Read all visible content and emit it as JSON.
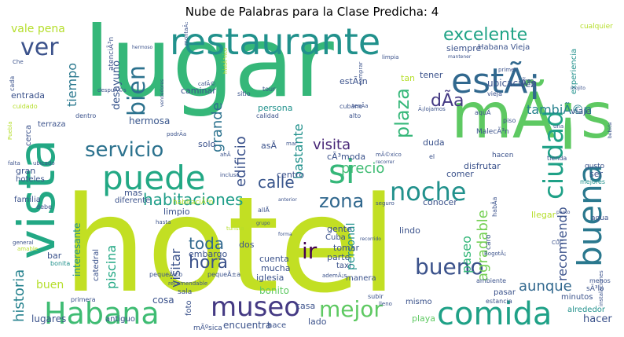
{
  "chart_data": {
    "type": "wordcloud",
    "title": "Nube de Palabras para la Clase Predicha: 4",
    "colormap": "viridis",
    "background": "#ffffff",
    "words": [
      {
        "text": "hotel",
        "weight": 100,
        "color": "#c2df23"
      },
      {
        "text": "lugar",
        "weight": 88,
        "color": "#35b779"
      },
      {
        "text": "mÃ¡s",
        "weight": 56,
        "color": "#5ec962"
      },
      {
        "text": "vista",
        "weight": 50,
        "color": "#22a884"
      },
      {
        "text": "buena",
        "weight": 30,
        "color": "#2a788e"
      },
      {
        "text": "restaurante",
        "weight": 36,
        "color": "#21918c"
      },
      {
        "text": "estÃ¡",
        "weight": 34,
        "color": "#31688e"
      },
      {
        "text": "puede",
        "weight": 33,
        "color": "#22a884"
      },
      {
        "text": "si",
        "weight": 32,
        "color": "#35b779"
      },
      {
        "text": "comida",
        "weight": 31,
        "color": "#1fa187"
      },
      {
        "text": "Habana",
        "weight": 29,
        "color": "#3fbc73"
      },
      {
        "text": "museo",
        "weight": 27,
        "color": "#443983"
      },
      {
        "text": "ciudad",
        "weight": 26,
        "color": "#1fa187"
      },
      {
        "text": "noche",
        "weight": 26,
        "color": "#21918c"
      },
      {
        "text": "bien",
        "weight": 25,
        "color": "#2c728e"
      },
      {
        "text": "ver",
        "weight": 24,
        "color": "#3b528b"
      },
      {
        "text": "bueno",
        "weight": 22,
        "color": "#3b528b"
      },
      {
        "text": "mejor",
        "weight": 22,
        "color": "#5ec962"
      },
      {
        "text": "servicio",
        "weight": 21,
        "color": "#2c728e"
      },
      {
        "text": "zona",
        "weight": 20,
        "color": "#31688e"
      },
      {
        "text": "ir",
        "weight": 20,
        "color": "#440154"
      },
      {
        "text": "plaza",
        "weight": 20,
        "color": "#35b779"
      },
      {
        "text": "excelente",
        "weight": 18,
        "color": "#20a386"
      },
      {
        "text": "dÃ­a",
        "weight": 17,
        "color": "#443983"
      },
      {
        "text": "hora",
        "weight": 17,
        "color": "#3b528b"
      },
      {
        "text": "habitaciones",
        "weight": 16,
        "color": "#1f9e89"
      },
      {
        "text": "calle",
        "weight": 16,
        "color": "#39568c"
      },
      {
        "text": "precio",
        "weight": 15,
        "color": "#3fbc73"
      },
      {
        "text": "historia",
        "weight": 15,
        "color": "#26828e"
      },
      {
        "text": "toda",
        "weight": 15,
        "color": "#31688e"
      },
      {
        "text": "aunque",
        "weight": 14,
        "color": "#31688e"
      },
      {
        "text": "visita",
        "weight": 14,
        "color": "#482677"
      },
      {
        "text": "edificio",
        "weight": 14,
        "color": "#3b528b"
      },
      {
        "text": "grande",
        "weight": 13,
        "color": "#2c728e"
      },
      {
        "text": "agradable",
        "weight": 13,
        "color": "#75d054"
      },
      {
        "text": "tambiÃ©n",
        "weight": 13,
        "color": "#26828e"
      },
      {
        "text": "recomiendo",
        "weight": 12,
        "color": "#3b528b"
      },
      {
        "text": "bastante",
        "weight": 12,
        "color": "#21918c"
      },
      {
        "text": "tiempo",
        "weight": 12,
        "color": "#2a788e"
      },
      {
        "text": "piscina",
        "weight": 12,
        "color": "#22a884"
      },
      {
        "text": "visitar",
        "weight": 12,
        "color": "#3b528b"
      },
      {
        "text": "paseo",
        "weight": 12,
        "color": "#35b779"
      },
      {
        "text": "buen",
        "weight": 12,
        "color": "#b5de2b"
      },
      {
        "text": "vale pena",
        "weight": 10,
        "color": "#b5de2b"
      },
      {
        "text": "personal",
        "weight": 10,
        "color": "#21918c"
      },
      {
        "text": "desayuno",
        "weight": 10,
        "color": "#39568c"
      },
      {
        "text": "hermosa",
        "weight": 9,
        "color": "#39568c"
      },
      {
        "text": "hacer",
        "weight": 9,
        "color": "#3b528b"
      },
      {
        "text": "lugares",
        "weight": 9,
        "color": "#3b528b"
      },
      {
        "text": "encuentra",
        "weight": 9,
        "color": "#3b528b"
      },
      {
        "text": "bonito",
        "weight": 9,
        "color": "#5ec962"
      },
      {
        "text": "cosa",
        "weight": 9,
        "color": "#3b528b"
      },
      {
        "text": "interesante",
        "weight": 9,
        "color": "#21918c"
      },
      {
        "text": "ubicaciÃ³n",
        "weight": 8,
        "color": "#3b528b"
      },
      {
        "text": "limpio",
        "weight": 8,
        "color": "#3b528b"
      },
      {
        "text": "mas",
        "weight": 8,
        "color": "#3b528b"
      },
      {
        "text": "duda",
        "weight": 8,
        "color": "#3b528b"
      },
      {
        "text": "lindo",
        "weight": 8,
        "color": "#3b528b"
      },
      {
        "text": "gente",
        "weight": 8,
        "color": "#3b528b"
      },
      {
        "text": "parte",
        "weight": 8,
        "color": "#3b528b"
      },
      {
        "text": "embargo",
        "weight": 8,
        "color": "#3b528b"
      },
      {
        "text": "iglesia",
        "weight": 8,
        "color": "#3b528b"
      },
      {
        "text": "conocer",
        "weight": 8,
        "color": "#3b528b"
      },
      {
        "text": "comer",
        "weight": 8,
        "color": "#3b528b"
      },
      {
        "text": "disfrutar",
        "weight": 8,
        "color": "#3b528b"
      },
      {
        "text": "solo",
        "weight": 8,
        "color": "#3b528b"
      },
      {
        "text": "asÃ­",
        "weight": 8,
        "color": "#3b528b"
      },
      {
        "text": "cÃ³moda",
        "weight": 8,
        "color": "#3b528b"
      },
      {
        "text": "entrada",
        "weight": 8,
        "color": "#3b528b"
      },
      {
        "text": "caminar",
        "weight": 8,
        "color": "#3b528b"
      },
      {
        "text": "siempre",
        "weight": 8,
        "color": "#3b528b"
      },
      {
        "text": "tener",
        "weight": 8,
        "color": "#3b528b"
      },
      {
        "text": "vez",
        "weight": 8,
        "color": "#3b528b"
      },
      {
        "text": "viaje",
        "weight": 8,
        "color": "#3b528b"
      },
      {
        "text": "centro",
        "weight": 8,
        "color": "#3b528b"
      },
      {
        "text": "tomar",
        "weight": 8,
        "color": "#3b528b"
      },
      {
        "text": "cuenta",
        "weight": 8,
        "color": "#3b528b"
      },
      {
        "text": "mucha",
        "weight": 8,
        "color": "#3b528b"
      },
      {
        "text": "casa",
        "weight": 8,
        "color": "#3b528b"
      },
      {
        "text": "lado",
        "weight": 8,
        "color": "#3b528b"
      },
      {
        "text": "playa",
        "weight": 8,
        "color": "#5ec962"
      },
      {
        "text": "llegar",
        "weight": 8,
        "color": "#b5de2b"
      },
      {
        "text": "bar",
        "weight": 8,
        "color": "#3b528b"
      },
      {
        "text": "gran",
        "weight": 8,
        "color": "#3b528b"
      },
      {
        "text": "dos",
        "weight": 8,
        "color": "#3b528b"
      },
      {
        "text": "ser",
        "weight": 8,
        "color": "#3b528b"
      },
      {
        "text": "estÃ¡n",
        "weight": 7,
        "color": "#3b528b"
      },
      {
        "text": "tan",
        "weight": 7,
        "color": "#b5de2b"
      },
      {
        "text": "persona",
        "weight": 7,
        "color": "#21918c"
      },
      {
        "text": "Cuba",
        "weight": 7,
        "color": "#3b528b"
      },
      {
        "text": "taxi",
        "weight": 7,
        "color": "#3b528b"
      },
      {
        "text": "hoteles",
        "weight": 7,
        "color": "#3b528b"
      },
      {
        "text": "familia",
        "weight": 7,
        "color": "#3b528b"
      },
      {
        "text": "diferente",
        "weight": 7,
        "color": "#3b528b"
      },
      {
        "text": "Habana Vieja",
        "weight": 7,
        "color": "#3b528b"
      },
      {
        "text": "experiencia",
        "weight": 7,
        "color": "#21918c"
      },
      {
        "text": "terraza",
        "weight": 7,
        "color": "#3b528b"
      },
      {
        "text": "cerca",
        "weight": 7,
        "color": "#3b528b"
      },
      {
        "text": "pasar",
        "weight": 7,
        "color": "#3b528b"
      },
      {
        "text": "manera",
        "weight": 7,
        "color": "#3b528b"
      },
      {
        "text": "mismo",
        "weight": 7,
        "color": "#3b528b"
      },
      {
        "text": "minutos",
        "weight": 7,
        "color": "#3b528b"
      },
      {
        "text": "alrededor",
        "weight": 7,
        "color": "#21918c"
      },
      {
        "text": "antiguo",
        "weight": 7,
        "color": "#3b528b"
      },
      {
        "text": "catedral",
        "weight": 7,
        "color": "#3b528b"
      },
      {
        "text": "foto",
        "weight": 7,
        "color": "#3b528b"
      },
      {
        "text": "hace",
        "weight": 7,
        "color": "#3b528b"
      },
      {
        "text": "atenciÃ³n",
        "weight": 7,
        "color": "#3b528b"
      },
      {
        "text": "hacen",
        "weight": 7,
        "color": "#3b528b"
      },
      {
        "text": "agua",
        "weight": 7,
        "color": "#3b528b"
      },
      {
        "text": "gusto",
        "weight": 7,
        "color": "#3b528b"
      },
      {
        "text": "cualquier",
        "weight": 6,
        "color": "#b5de2b"
      },
      {
        "text": "mÃºsica",
        "weight": 6,
        "color": "#3b528b"
      },
      {
        "text": "sala",
        "weight": 6,
        "color": "#3b528b"
      },
      {
        "text": "primera",
        "weight": 6,
        "color": "#3b528b"
      },
      {
        "text": "subir",
        "weight": 6,
        "color": "#3b528b"
      },
      {
        "text": "sÃ³lo",
        "weight": 6,
        "color": "#3b528b"
      },
      {
        "text": "caro",
        "weight": 6,
        "color": "#3b528b"
      },
      {
        "text": "cuidado",
        "weight": 6,
        "color": "#b5de2b"
      },
      {
        "text": "menos",
        "weight": 6,
        "color": "#3b528b"
      },
      {
        "text": "ambiente",
        "weight": 6,
        "color": "#3b528b"
      },
      {
        "text": "estancia",
        "weight": 6,
        "color": "#3b528b"
      },
      {
        "text": "debe",
        "weight": 6,
        "color": "#3b528b"
      },
      {
        "text": "mejores",
        "weight": 6,
        "color": "#21918c"
      },
      {
        "text": "tienda",
        "weight": 6,
        "color": "#3b528b"
      },
      {
        "text": "piso",
        "weight": 6,
        "color": "#3b528b"
      },
      {
        "text": "dentro",
        "weight": 6,
        "color": "#3b528b"
      },
      {
        "text": "tour",
        "weight": 6,
        "color": "#3b528b"
      },
      {
        "text": "sitio",
        "weight": 6,
        "color": "#3b528b"
      },
      {
        "text": "calidad",
        "weight": 6,
        "color": "#3b528b"
      },
      {
        "text": "cubano",
        "weight": 6,
        "color": "#3b528b"
      },
      {
        "text": "alto",
        "weight": 6,
        "color": "#3b528b"
      },
      {
        "text": "vieja",
        "weight": 6,
        "color": "#3b528b"
      },
      {
        "text": "comprar",
        "weight": 6,
        "color": "#3b528b"
      },
      {
        "text": "limpia",
        "weight": 6,
        "color": "#3b528b"
      },
      {
        "text": "general",
        "weight": 6,
        "color": "#3b528b"
      },
      {
        "text": "amable",
        "weight": 6,
        "color": "#b5de2b"
      },
      {
        "text": "bonita",
        "weight": 6,
        "color": "#21918c"
      },
      {
        "text": "Puebla",
        "weight": 6,
        "color": "#b5de2b"
      },
      {
        "text": "ubicado",
        "weight": 6,
        "color": "#3b528b"
      },
      {
        "text": "falta",
        "weight": 6,
        "color": "#3b528b"
      },
      {
        "text": "incluso",
        "weight": 5,
        "color": "#3b528b"
      },
      {
        "text": "turista",
        "weight": 5,
        "color": "#b5de2b"
      },
      {
        "text": "seguro",
        "weight": 5,
        "color": "#3b528b"
      },
      {
        "text": "instalaciones",
        "weight": 5,
        "color": "#3b528b"
      },
      {
        "text": "creo",
        "weight": 5,
        "color": "#3b528b"
      },
      {
        "text": "primer",
        "weight": 5,
        "color": "#3b528b"
      },
      {
        "text": "vendedores",
        "weight": 5,
        "color": "#3b528b"
      },
      {
        "text": "bebida",
        "weight": 5,
        "color": "#3b528b"
      },
      {
        "text": "mÃ©xico",
        "weight": 5,
        "color": "#3b528b"
      },
      {
        "text": "recorrer",
        "weight": 5,
        "color": "#3b528b"
      },
      {
        "text": "grupo",
        "weight": 5,
        "color": "#3b528b"
      },
      {
        "text": "forma",
        "weight": 5,
        "color": "#3b528b"
      },
      {
        "text": "recorrido",
        "weight": 5,
        "color": "#3b528b"
      },
      {
        "text": "punto",
        "weight": 5,
        "color": "#3b528b"
      },
      {
        "text": "hermoso",
        "weight": 5,
        "color": "#3b528b"
      },
      {
        "text": "CUC",
        "weight": 5,
        "color": "#3b528b"
      },
      {
        "text": "mojito",
        "weight": 5,
        "color": "#3b528b"
      },
      {
        "text": "aquÃ­",
        "weight": 5,
        "color": "#3b528b"
      },
      {
        "text": "MalecÃ³n",
        "weight": 5,
        "color": "#3b528b"
      },
      {
        "text": "Ã¡lojamos",
        "weight": 5,
        "color": "#3b528b"
      },
      {
        "text": "tenÃ­a",
        "weight": 5,
        "color": "#3b528b"
      },
      {
        "text": "ademÃ¡s",
        "weight": 5,
        "color": "#3b528b"
      },
      {
        "text": "pequeÃ±o",
        "weight": 5,
        "color": "#3b528b"
      },
      {
        "text": "pequeÃ±a",
        "weight": 5,
        "color": "#3b528b"
      },
      {
        "text": "recomendable",
        "weight": 5,
        "color": "#3b528b"
      },
      {
        "text": "habÃ­a",
        "weight": 5,
        "color": "#3b528b"
      },
      {
        "text": "habitaciÃ³n",
        "weight": 5,
        "color": "#b5de2b"
      },
      {
        "text": "podrÃ­a",
        "weight": 5,
        "color": "#3b528b"
      },
      {
        "text": "despuÃ©s",
        "weight": 5,
        "color": "#3b528b"
      },
      {
        "text": "histÃ³rico",
        "weight": 5,
        "color": "#b5de2b"
      },
      {
        "text": "cafÃ©",
        "weight": 5,
        "color": "#3b528b"
      },
      {
        "text": "montaÃ±a",
        "weight": 5,
        "color": "#3b528b"
      },
      {
        "text": "ahÃ­",
        "weight": 5,
        "color": "#3b528b"
      },
      {
        "text": "allÃ­",
        "weight": 5,
        "color": "#3b528b"
      },
      {
        "text": "lleno",
        "weight": 5,
        "color": "#3b528b"
      },
      {
        "text": "BogotÃ¡",
        "weight": 5,
        "color": "#3b528b"
      },
      {
        "text": "mar",
        "weight": 5,
        "color": "#3b528b"
      },
      {
        "text": "una",
        "weight": 5,
        "color": "#3b528b"
      },
      {
        "text": "el",
        "weight": 5,
        "color": "#3b528b"
      },
      {
        "text": "cada",
        "weight": 5,
        "color": "#3b528b"
      },
      {
        "text": "Che",
        "weight": 5,
        "color": "#3b528b"
      },
      {
        "text": "hasta",
        "weight": 5,
        "color": "#3b528b"
      },
      {
        "text": "mantener",
        "weight": 5,
        "color": "#3b528b"
      },
      {
        "text": "anterior",
        "weight": 5,
        "color": "#3b528b"
      }
    ]
  }
}
